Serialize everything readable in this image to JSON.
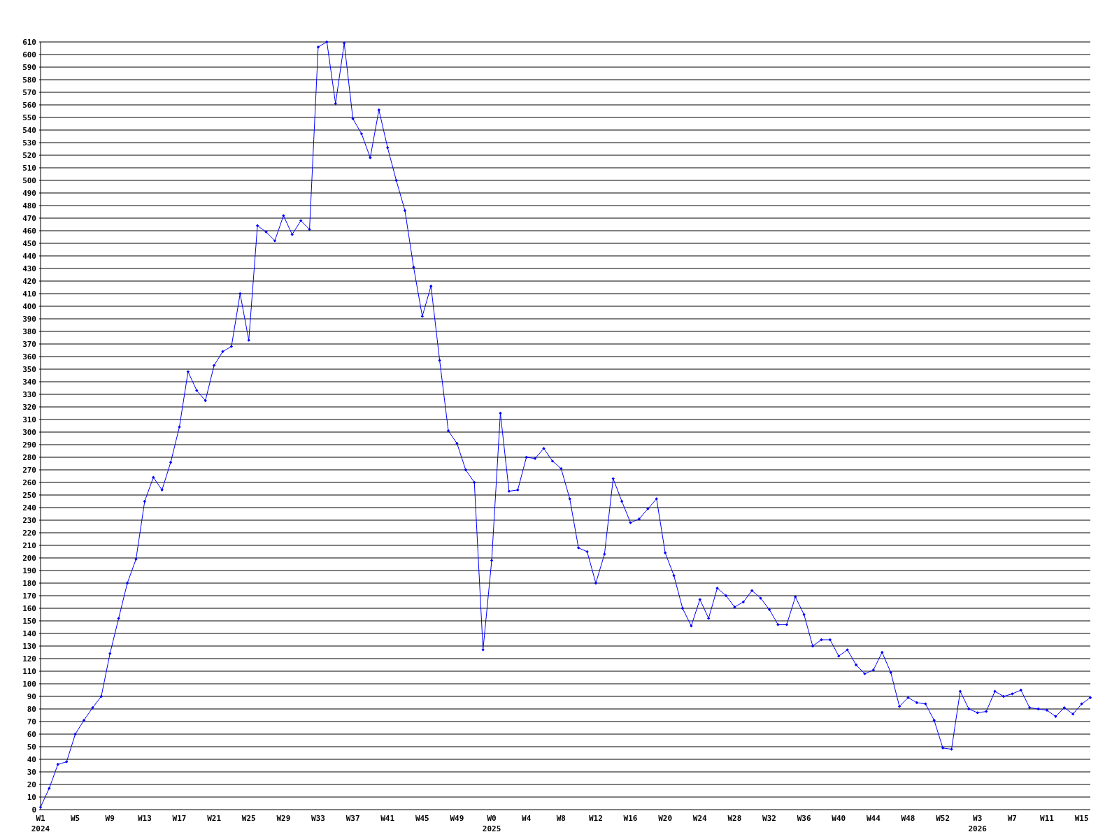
{
  "chart_data": {
    "type": "line",
    "categories": [
      "W1\n2024",
      null,
      null,
      null,
      "W5",
      null,
      null,
      null,
      "W9",
      null,
      null,
      null,
      "W13",
      null,
      null,
      null,
      "W17",
      null,
      null,
      null,
      "W21",
      null,
      null,
      null,
      "W25",
      null,
      null,
      null,
      "W29",
      null,
      null,
      null,
      "W33",
      null,
      null,
      null,
      "W37",
      null,
      null,
      null,
      "W41",
      null,
      null,
      null,
      "W45",
      null,
      null,
      null,
      "W49",
      null,
      null,
      null,
      "W0\n2025",
      null,
      null,
      null,
      "W4",
      null,
      null,
      null,
      "W8",
      null,
      null,
      null,
      "W12",
      null,
      null,
      null,
      "W16",
      null,
      null,
      null,
      "W20",
      null,
      null,
      null,
      "W24",
      null,
      null,
      null,
      "W28",
      null,
      null,
      null,
      "W32",
      null,
      null,
      null,
      "W36",
      null,
      null,
      null,
      "W40",
      null,
      null,
      null,
      "W44",
      null,
      null,
      null,
      "W48",
      null,
      null,
      null,
      "W52",
      null,
      null,
      null,
      "W3\n2026",
      null,
      null,
      null,
      "W7",
      null,
      null,
      null,
      "W11",
      null,
      null,
      null,
      "W15",
      null
    ],
    "series": [
      {
        "color": "#0000ff",
        "values": [
          2,
          17,
          36,
          38,
          60,
          71,
          81,
          90,
          124,
          152,
          180,
          199,
          245,
          264,
          254,
          276,
          304,
          348,
          333,
          325,
          353,
          364,
          368,
          410,
          373,
          464,
          459,
          452,
          472,
          457,
          468,
          461,
          606,
          610,
          561,
          609,
          549,
          537,
          518,
          556,
          526,
          500,
          476,
          431,
          392,
          416,
          357,
          301,
          291,
          270,
          260,
          127,
          198,
          315,
          253,
          254,
          280,
          279,
          287,
          277,
          271,
          247,
          208,
          205,
          180,
          203,
          263,
          245,
          228,
          231,
          239,
          247,
          204,
          186,
          160,
          146,
          167,
          152,
          176,
          170,
          161,
          165,
          174,
          168,
          159,
          147,
          147,
          169,
          155,
          130,
          135,
          135,
          122,
          127,
          115,
          108,
          111,
          125,
          109,
          82,
          89,
          85,
          84,
          71,
          49,
          48,
          94,
          80,
          77,
          78,
          94,
          90,
          92,
          95,
          81,
          80,
          79,
          74,
          81,
          76,
          84,
          89
        ]
      }
    ],
    "ylim": [
      0,
      610
    ],
    "yticks": [
      0,
      10,
      20,
      30,
      40,
      50,
      60,
      70,
      80,
      90,
      100,
      110,
      120,
      130,
      140,
      150,
      160,
      170,
      180,
      190,
      200,
      210,
      220,
      230,
      240,
      250,
      260,
      270,
      280,
      290,
      300,
      310,
      320,
      330,
      340,
      350,
      360,
      370,
      380,
      390,
      400,
      410,
      420,
      430,
      440,
      450,
      460,
      470,
      480,
      490,
      500,
      510,
      520,
      530,
      540,
      550,
      560,
      570,
      580,
      590,
      600,
      610
    ],
    "grid": "y",
    "marker": "diamond",
    "line_style": "solid"
  }
}
